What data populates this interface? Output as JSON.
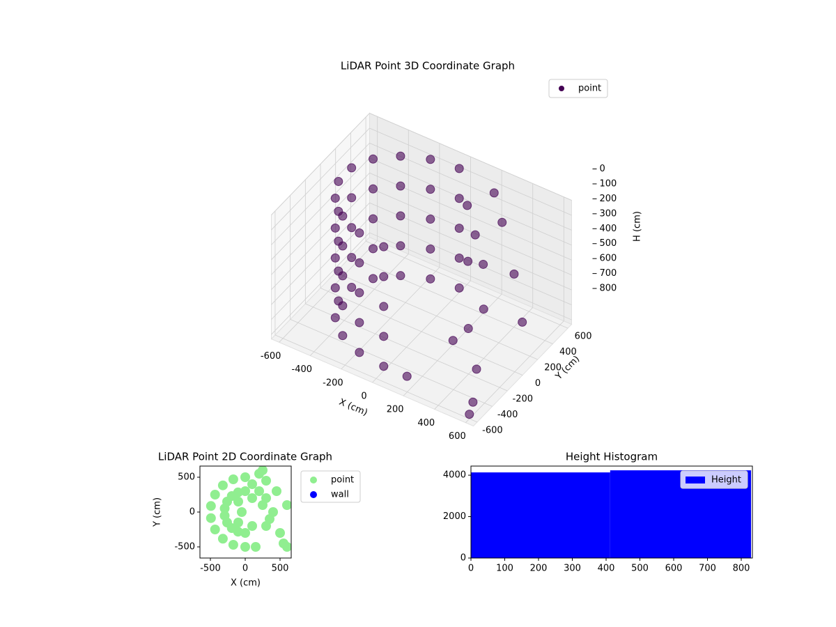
{
  "chart_data": [
    {
      "type": "scatter3d",
      "title": "LiDAR Point 3D Coordinate Graph",
      "xlabel": "X (cm)",
      "ylabel": "Y (cm)",
      "zlabel": "H (cm)",
      "xlim": [
        -650,
        650
      ],
      "ylim": [
        -650,
        650
      ],
      "zlim": [
        0,
        830
      ],
      "z_inverted": true,
      "xticks": [
        -600,
        -400,
        -200,
        0,
        200,
        400,
        600
      ],
      "yticks": [
        -600,
        -400,
        -200,
        0,
        200,
        400,
        600
      ],
      "zticks": [
        0,
        100,
        200,
        300,
        400,
        500,
        600,
        700,
        800
      ],
      "grid": true,
      "legend": "upper right",
      "series": [
        {
          "name": "point",
          "color": "#440154",
          "x": [
            0,
            -171,
            -321,
            -433,
            -492,
            -492,
            -433,
            -321,
            -171,
            0,
            0,
            -171,
            -321,
            -433,
            -492,
            -492,
            -433,
            -321,
            -171,
            0,
            0,
            -171,
            -321,
            -433,
            -492,
            -492,
            -433,
            -321,
            -171,
            0,
            0,
            -171,
            -321,
            -433,
            -492,
            -492,
            -433,
            -321,
            -171,
            0,
            0,
            -171,
            -321,
            -433,
            -492,
            -492,
            -433,
            -321,
            -171,
            0,
            100,
            200,
            300,
            250,
            400,
            350,
            300,
            450,
            500,
            150,
            600,
            600,
            550,
            300,
            200
          ],
          "y": [
            500,
            470,
            383,
            250,
            87,
            -87,
            -250,
            -383,
            -470,
            -500,
            500,
            470,
            383,
            250,
            87,
            -87,
            -250,
            -383,
            -470,
            -500,
            500,
            470,
            383,
            250,
            87,
            -87,
            -250,
            -383,
            -470,
            -500,
            500,
            470,
            383,
            250,
            87,
            -87,
            -250,
            -383,
            -470,
            -500,
            500,
            470,
            383,
            250,
            87,
            -87,
            -250,
            -383,
            -470,
            -500,
            400,
            300,
            200,
            100,
            0,
            -100,
            -200,
            300,
            -300,
            -500,
            100,
            -600,
            -450,
            450,
            550
          ],
          "z": [
            0,
            0,
            0,
            0,
            0,
            0,
            0,
            0,
            0,
            0,
            200,
            200,
            200,
            200,
            200,
            200,
            200,
            200,
            200,
            200,
            400,
            400,
            400,
            400,
            400,
            400,
            400,
            400,
            400,
            400,
            600,
            600,
            600,
            600,
            600,
            600,
            600,
            600,
            600,
            600,
            800,
            800,
            800,
            800,
            800,
            800,
            800,
            800,
            800,
            800,
            150,
            250,
            350,
            300,
            500,
            600,
            650,
            400,
            700,
            800,
            550,
            800,
            820,
            200,
            100
          ]
        }
      ]
    },
    {
      "type": "scatter",
      "title": "LiDAR Point 2D Coordinate Graph",
      "xlabel": "X (cm)",
      "ylabel": "Y (cm)",
      "xlim": [
        -650,
        660
      ],
      "ylim": [
        -660,
        660
      ],
      "xticks": [
        -500,
        0,
        500
      ],
      "yticks": [
        -500,
        0,
        500
      ],
      "legend": "outside right",
      "series": [
        {
          "name": "point",
          "color": "#90ee90",
          "x": [
            0,
            -171,
            -321,
            -433,
            -492,
            -492,
            -433,
            -321,
            -171,
            0,
            0,
            -103,
            -193,
            -260,
            -295,
            -295,
            -260,
            -193,
            -103,
            0,
            -100,
            -100,
            -50,
            100,
            100,
            100,
            200,
            300,
            250,
            400,
            350,
            300,
            450,
            500,
            150,
            600,
            550,
            300,
            200,
            250,
            600
          ],
          "y": [
            500,
            470,
            383,
            250,
            87,
            -87,
            -250,
            -383,
            -470,
            -500,
            300,
            282,
            230,
            150,
            52,
            -52,
            -150,
            -230,
            -282,
            -300,
            150,
            -150,
            0,
            200,
            -200,
            400,
            300,
            200,
            100,
            0,
            -100,
            -200,
            300,
            -300,
            -500,
            100,
            -450,
            450,
            550,
            600,
            -500
          ]
        },
        {
          "name": "wall",
          "color": "#0000ff",
          "x": [],
          "y": []
        }
      ]
    },
    {
      "type": "histogram",
      "title": "Height Histogram",
      "xlim": [
        0,
        833
      ],
      "ylim": [
        0,
        4440
      ],
      "xticks": [
        0,
        100,
        200,
        300,
        400,
        500,
        600,
        700,
        800
      ],
      "yticks": [
        0,
        2000,
        4000
      ],
      "legend": "upper right",
      "series": [
        {
          "name": "Height",
          "color": "#0000ff",
          "bins": [
            0,
            412,
            829
          ],
          "values": [
            4134,
            4235
          ]
        }
      ]
    }
  ]
}
